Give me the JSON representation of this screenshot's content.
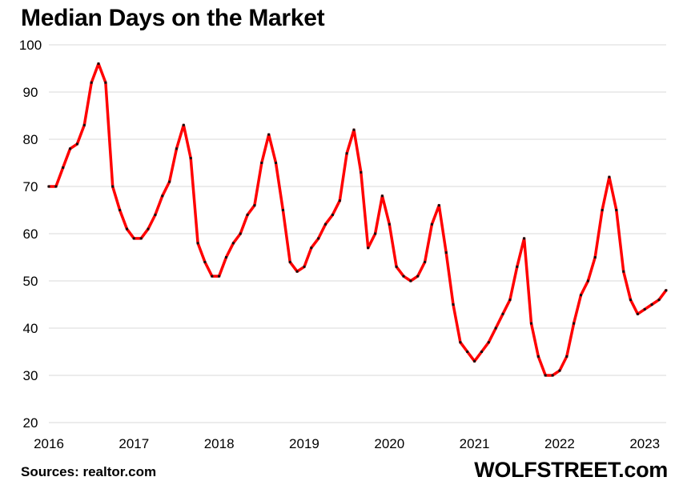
{
  "chart_data": {
    "type": "line",
    "title": "Median Days on the Market",
    "xlabel": "",
    "ylabel": "",
    "ylim": [
      20,
      100
    ],
    "yticks": [
      20,
      30,
      40,
      50,
      60,
      70,
      80,
      90,
      100
    ],
    "xticks": [
      {
        "label": "2016",
        "x": 2016
      },
      {
        "label": "2017",
        "x": 2017
      },
      {
        "label": "2018",
        "x": 2018
      },
      {
        "label": "2019",
        "x": 2019
      },
      {
        "label": "2020",
        "x": 2020
      },
      {
        "label": "2021",
        "x": 2021
      },
      {
        "label": "2022",
        "x": 2022
      },
      {
        "label": "2023",
        "x": 2023
      }
    ],
    "xlim_months": [
      0,
      87
    ],
    "grid": "horizontal",
    "series": [
      {
        "name": "Median Days on the Market",
        "color": "#ff0000",
        "start": "2016-01",
        "values": [
          70,
          70,
          74,
          78,
          79,
          83,
          92,
          96,
          92,
          70,
          65,
          61,
          59,
          59,
          61,
          64,
          68,
          71,
          78,
          83,
          76,
          58,
          54,
          51,
          51,
          55,
          58,
          60,
          64,
          66,
          75,
          81,
          75,
          65,
          54,
          52,
          53,
          57,
          59,
          62,
          64,
          67,
          77,
          82,
          73,
          57,
          60,
          68,
          62,
          53,
          51,
          50,
          51,
          54,
          62,
          66,
          56,
          45,
          37,
          35,
          33,
          35,
          37,
          40,
          43,
          46,
          53,
          59,
          41,
          34,
          30,
          30,
          31,
          34,
          41,
          47,
          50,
          55,
          65,
          72,
          65,
          52,
          46,
          43,
          44,
          45,
          46,
          48
        ]
      }
    ]
  },
  "footer": {
    "source": "Sources: realtor.com",
    "brand": "WOLFSTREET.com"
  },
  "colors": {
    "line": "#ff0000",
    "marker": "#111111",
    "grid": "#d9d9d9"
  }
}
